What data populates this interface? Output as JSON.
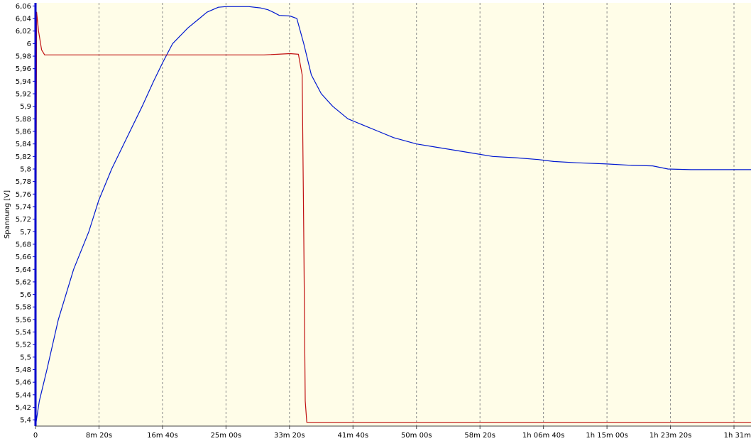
{
  "chart_data": {
    "type": "line",
    "ylabel": "Spannung [V]",
    "ylim": [
      5.39,
      6.065
    ],
    "y_ticks": [
      "6,06",
      "6,04",
      "6,02",
      "6",
      "5,98",
      "5,96",
      "5,94",
      "5,92",
      "5,9",
      "5,88",
      "5,86",
      "5,84",
      "5,82",
      "5,8",
      "5,78",
      "5,76",
      "5,74",
      "5,72",
      "5,7",
      "5,68",
      "5,66",
      "5,64",
      "5,62",
      "5,6",
      "5,58",
      "5,56",
      "5,54",
      "5,52",
      "5,5",
      "5,48",
      "5,46",
      "5,44",
      "5,42",
      "5,4"
    ],
    "x_ticks": [
      "0",
      "8m 20s",
      "16m 40s",
      "25m 00s",
      "33m 20s",
      "41m 40s",
      "50m 00s",
      "58m 20s",
      "1h 06m 40s",
      "1h 15m 00s",
      "1h 23m 20s",
      "1h 31m"
    ],
    "xlim_minutes": [
      0,
      93.9
    ],
    "grid": true,
    "colors": {
      "background": "#fffde8",
      "grid": "#8a8a8a",
      "axis": "#0000cc"
    },
    "series": [
      {
        "color": "#0018d0",
        "x_minutes": [
          0,
          0.5,
          1.5,
          3,
          5,
          7,
          8.3,
          10,
          12,
          14,
          15.5,
          16.7,
          18,
          20,
          21.5,
          22.5,
          24,
          25,
          26,
          28,
          29.5,
          30.5,
          31.2,
          32,
          33.4,
          34.3,
          35.2,
          36.2,
          37.5,
          39,
          41,
          43,
          45,
          47,
          50,
          52.5,
          55,
          57.5,
          60,
          63,
          66,
          68,
          71,
          75,
          78,
          81,
          83,
          86,
          90,
          93.9
        ],
        "y": [
          5.39,
          5.43,
          5.48,
          5.56,
          5.64,
          5.7,
          5.75,
          5.8,
          5.85,
          5.9,
          5.94,
          5.97,
          6.0,
          6.025,
          6.04,
          6.05,
          6.058,
          6.059,
          6.059,
          6.059,
          6.057,
          6.054,
          6.05,
          6.045,
          6.044,
          6.04,
          6.0,
          5.95,
          5.92,
          5.9,
          5.88,
          5.87,
          5.86,
          5.85,
          5.84,
          5.835,
          5.83,
          5.825,
          5.82,
          5.818,
          5.815,
          5.812,
          5.81,
          5.808,
          5.806,
          5.805,
          5.8,
          5.799,
          5.799,
          5.799
        ]
      },
      {
        "color": "#c01010",
        "x_minutes": [
          0,
          0.15,
          0.4,
          0.8,
          1.2,
          2,
          5,
          8.3,
          12,
          16.7,
          20,
          25,
          30,
          33.4,
          34.5,
          35.0,
          35.2,
          35.4,
          35.6,
          36,
          40,
          50,
          60,
          70,
          80,
          93.9
        ],
        "y": [
          5.39,
          6.05,
          6.02,
          5.99,
          5.982,
          5.982,
          5.982,
          5.982,
          5.982,
          5.982,
          5.982,
          5.982,
          5.982,
          5.984,
          5.983,
          5.95,
          5.7,
          5.43,
          5.396,
          5.396,
          5.396,
          5.396,
          5.396,
          5.396,
          5.396,
          5.396
        ]
      }
    ]
  }
}
